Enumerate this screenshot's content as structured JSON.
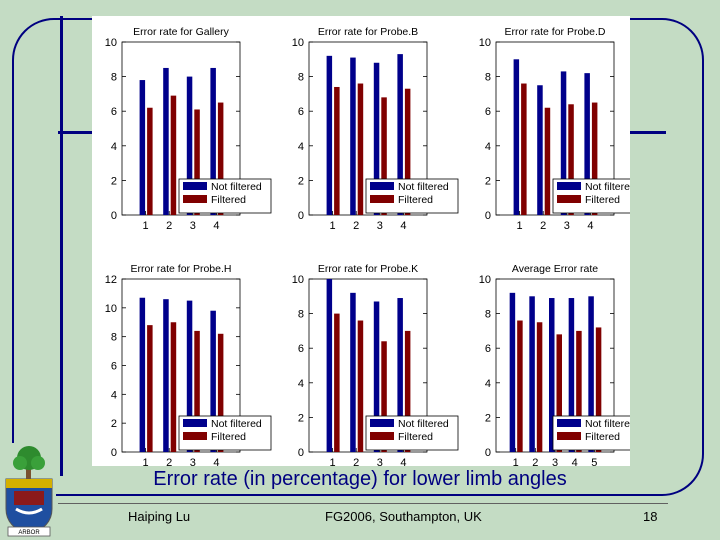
{
  "slide": {
    "caption": "Error rate (in percentage) for lower limb angles",
    "footer_left": "Haiping Lu",
    "footer_center": "FG2006, Southampton, UK",
    "page_number": "18",
    "crest_text": "ARBOR"
  },
  "colors": {
    "background": "#c4dcc4",
    "accent": "#000080",
    "not_filtered": "#00008b",
    "filtered": "#800000"
  },
  "chart_data": [
    {
      "type": "bar",
      "title": "Error rate for Gallery",
      "categories": [
        "1",
        "2",
        "3",
        "4"
      ],
      "ylim": [
        0,
        10
      ],
      "yticks": [
        0,
        2,
        4,
        6,
        8,
        10
      ],
      "legend": "bottom-right",
      "series": [
        {
          "name": "Not filtered",
          "values": [
            7.8,
            8.5,
            8.0,
            8.5
          ]
        },
        {
          "name": "Filtered",
          "values": [
            6.2,
            6.9,
            6.1,
            6.5
          ]
        }
      ]
    },
    {
      "type": "bar",
      "title": "Error rate for Probe.B",
      "categories": [
        "1",
        "2",
        "3",
        "4"
      ],
      "ylim": [
        0,
        10
      ],
      "yticks": [
        0,
        2,
        4,
        6,
        8,
        10
      ],
      "legend": "bottom-right",
      "series": [
        {
          "name": "Not filtered",
          "values": [
            9.2,
            9.1,
            8.8,
            9.3
          ]
        },
        {
          "name": "Filtered",
          "values": [
            7.4,
            7.6,
            6.8,
            7.3
          ]
        }
      ]
    },
    {
      "type": "bar",
      "title": "Error rate for Probe.D",
      "categories": [
        "1",
        "2",
        "3",
        "4"
      ],
      "ylim": [
        0,
        10
      ],
      "yticks": [
        0,
        2,
        4,
        6,
        8,
        10
      ],
      "legend": "bottom-right",
      "series": [
        {
          "name": "Not filtered",
          "values": [
            9.0,
            7.5,
            8.3,
            8.2
          ]
        },
        {
          "name": "Filtered",
          "values": [
            7.6,
            6.2,
            6.4,
            6.5
          ]
        }
      ]
    },
    {
      "type": "bar",
      "title": "Error rate for Probe.H",
      "categories": [
        "1",
        "2",
        "3",
        "4"
      ],
      "ylim": [
        0,
        12
      ],
      "yticks": [
        0,
        2,
        4,
        6,
        8,
        10,
        12
      ],
      "legend": "bottom-right",
      "series": [
        {
          "name": "Not filtered",
          "values": [
            10.7,
            10.6,
            10.5,
            9.8
          ]
        },
        {
          "name": "Filtered",
          "values": [
            8.8,
            9.0,
            8.4,
            8.2
          ]
        }
      ]
    },
    {
      "type": "bar",
      "title": "Error rate for Probe.K",
      "categories": [
        "1",
        "2",
        "3",
        "4"
      ],
      "ylim": [
        0,
        10
      ],
      "yticks": [
        0,
        2,
        4,
        6,
        8,
        10
      ],
      "legend": "bottom-right",
      "series": [
        {
          "name": "Not filtered",
          "values": [
            10.0,
            9.2,
            8.7,
            8.9
          ]
        },
        {
          "name": "Filtered",
          "values": [
            8.0,
            7.6,
            6.4,
            7.0
          ]
        }
      ]
    },
    {
      "type": "bar",
      "title": "Average Error rate",
      "categories": [
        "1",
        "2",
        "3",
        "4",
        "5"
      ],
      "ylim": [
        0,
        10
      ],
      "yticks": [
        0,
        2,
        4,
        6,
        8,
        10
      ],
      "legend": "bottom-right",
      "series": [
        {
          "name": "Not filtered",
          "values": [
            9.2,
            9.0,
            8.9,
            8.9,
            9.0
          ]
        },
        {
          "name": "Filtered",
          "values": [
            7.6,
            7.5,
            6.8,
            7.0,
            7.2
          ]
        }
      ]
    }
  ]
}
